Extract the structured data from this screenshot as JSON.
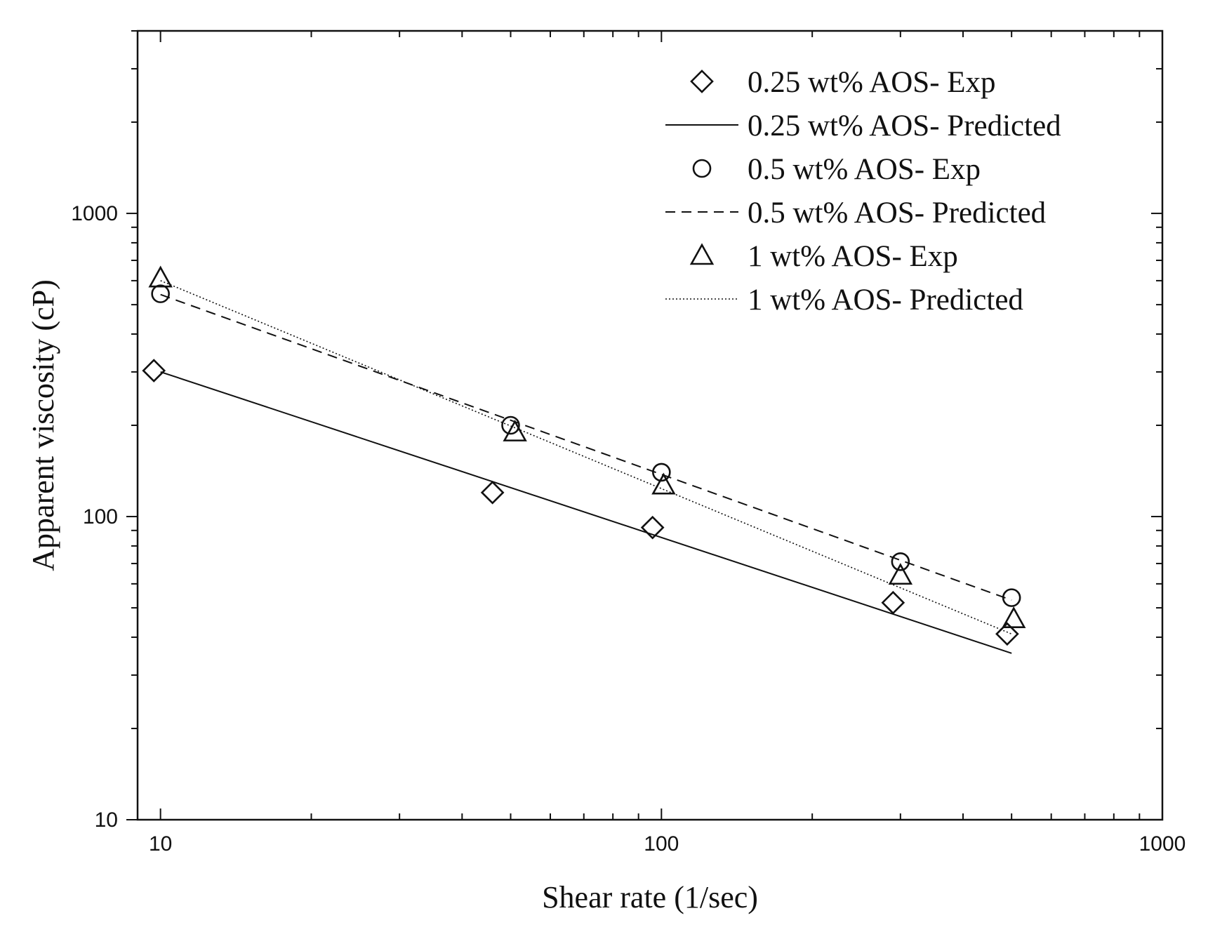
{
  "chart_data": {
    "type": "scatter",
    "title": "",
    "xlabel": "Shear rate (1/sec)",
    "ylabel": "Apparent viscosity (cP)",
    "xscale": "log",
    "yscale": "log",
    "xlim": [
      9,
      1000
    ],
    "ylim": [
      10,
      4000
    ],
    "xticks": [
      10,
      100,
      1000
    ],
    "xtick_labels": [
      "10",
      "100",
      "1000"
    ],
    "yticks": [
      10,
      100,
      1000
    ],
    "ytick_labels": [
      "10",
      "100",
      "1000"
    ],
    "grid": false,
    "legend_position": "top-right",
    "series": [
      {
        "name": "0.25 wt% AOS- Exp",
        "kind": "marker",
        "marker": "diamond",
        "x": [
          9.7,
          46,
          96,
          290,
          490
        ],
        "y": [
          303,
          120,
          92,
          52,
          41
        ]
      },
      {
        "name": "0.25 wt% AOS- Predicted",
        "kind": "line",
        "line_style": "solid",
        "x": [
          10,
          500
        ],
        "y": [
          300,
          35.4
        ]
      },
      {
        "name": "0.5 wt% AOS- Exp",
        "kind": "marker",
        "marker": "circle",
        "x": [
          10,
          50,
          100,
          300,
          500
        ],
        "y": [
          543,
          200,
          140,
          71,
          54
        ]
      },
      {
        "name": "0.5 wt% AOS- Predicted",
        "kind": "line",
        "line_style": "dashed",
        "x": [
          10,
          500
        ],
        "y": [
          540,
          53
        ]
      },
      {
        "name": "1 wt% AOS- Exp",
        "kind": "marker",
        "marker": "triangle",
        "x": [
          10,
          51,
          101,
          300,
          505
        ],
        "y": [
          612,
          190,
          127,
          64,
          46
        ]
      },
      {
        "name": "1 wt% AOS- Predicted",
        "kind": "line",
        "line_style": "dotted",
        "x": [
          10,
          500
        ],
        "y": [
          600,
          41
        ]
      }
    ]
  }
}
